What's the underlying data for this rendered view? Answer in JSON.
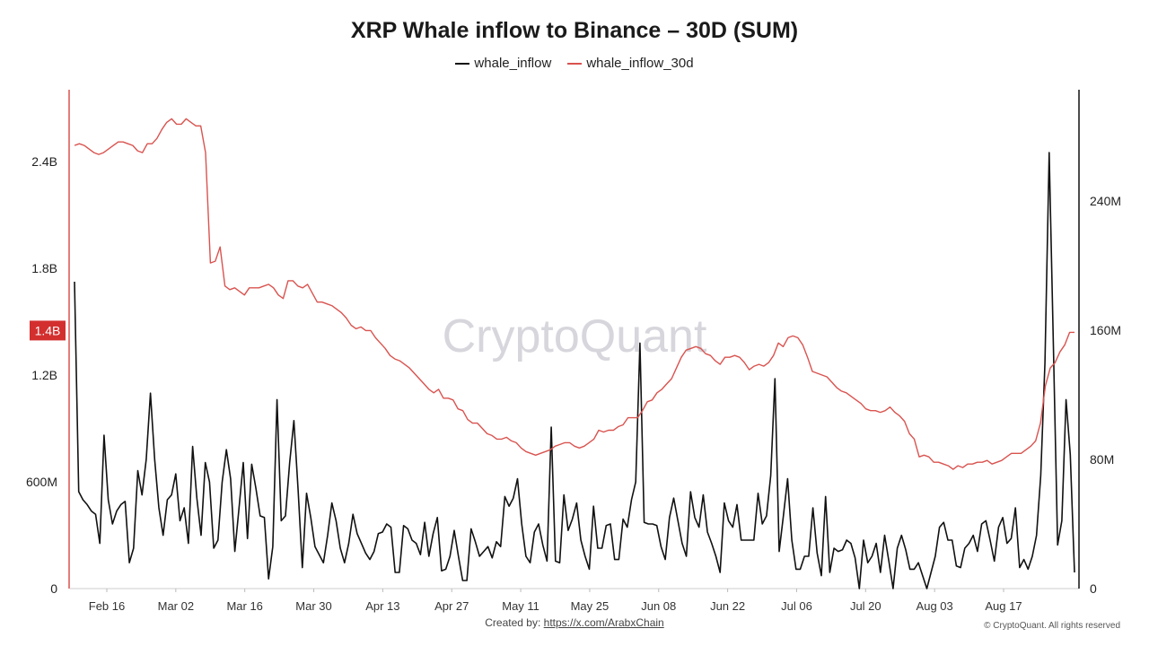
{
  "chart_data": {
    "type": "line",
    "title": "XRP Whale inflow to Binance – 30D (SUM)",
    "legend_position": "top-center",
    "grid": false,
    "x_tick_labels": [
      "Feb 16",
      "Mar 02",
      "Mar 16",
      "Mar 30",
      "Apr 13",
      "Apr 27",
      "May 11",
      "May 25",
      "Jun 08",
      "Jun 22",
      "Jul 06",
      "Jul 20",
      "Aug 03",
      "Aug 17"
    ],
    "left_axis": {
      "ticks": [
        "0",
        "600M",
        "1.2B",
        "1.8B",
        "2.4B"
      ],
      "tick_values": [
        0,
        600000000,
        1200000000,
        1800000000,
        2400000000
      ],
      "current_value_label": "1.4B",
      "current_value": 1450000000
    },
    "right_axis": {
      "ticks": [
        "0",
        "80M",
        "160M",
        "240M"
      ],
      "tick_values": [
        0,
        80000000,
        160000000,
        240000000
      ]
    },
    "series": [
      {
        "name": "whale_inflow",
        "axis": "right",
        "color": "#111111",
        "values_millions": [
          190,
          60,
          55,
          52,
          48,
          46,
          28,
          95,
          55,
          40,
          48,
          52,
          54,
          16,
          25,
          73,
          58,
          80,
          121,
          80,
          50,
          33,
          55,
          58,
          71,
          42,
          50,
          28,
          88,
          56,
          33,
          78,
          66,
          25,
          30,
          66,
          86,
          68,
          23,
          50,
          78,
          31,
          77,
          62,
          45,
          44,
          6,
          26,
          117,
          42,
          45,
          78,
          104,
          61,
          13,
          59,
          44,
          26,
          21,
          16,
          33,
          53,
          42,
          25,
          16,
          28,
          46,
          34,
          28,
          22,
          18,
          23,
          34,
          35,
          40,
          38,
          10,
          10,
          39,
          37,
          30,
          28,
          21,
          41,
          20,
          34,
          44,
          11,
          12,
          20,
          36,
          20,
          5,
          5,
          37,
          29,
          20,
          23,
          26,
          19,
          29,
          26,
          57,
          51,
          56,
          68,
          40,
          20,
          16,
          35,
          40,
          27,
          17,
          100,
          17,
          16,
          58,
          36,
          43,
          53,
          30,
          20,
          12,
          51,
          25,
          25,
          39,
          40,
          18,
          18,
          43,
          38,
          55,
          66,
          152,
          41,
          40,
          40,
          39,
          26,
          18,
          44,
          56,
          42,
          28,
          20,
          60,
          44,
          38,
          58,
          35,
          28,
          20,
          10,
          53,
          42,
          38,
          52,
          30,
          30,
          30,
          30,
          59,
          40,
          45,
          70,
          130,
          23,
          45,
          68,
          30,
          12,
          12,
          20,
          20,
          50,
          22,
          8,
          57,
          10,
          25,
          23,
          24,
          30,
          28,
          19,
          0,
          30,
          16,
          20,
          28,
          10,
          33,
          17,
          0,
          25,
          33,
          24,
          12,
          12,
          16,
          8,
          0,
          10,
          20,
          38,
          41,
          30,
          30,
          14,
          13,
          25,
          28,
          33,
          23,
          40,
          42,
          30,
          17,
          38,
          44,
          28,
          31,
          50,
          13,
          18,
          12,
          20,
          33,
          70,
          140,
          270,
          150,
          27,
          42,
          117,
          83,
          10
        ]
      },
      {
        "name": "whale_inflow_30d",
        "axis": "left",
        "color": "#d9534f",
        "values_millions": [
          2490,
          2500,
          2490,
          2470,
          2450,
          2440,
          2450,
          2470,
          2490,
          2510,
          2510,
          2500,
          2490,
          2460,
          2450,
          2500,
          2500,
          2530,
          2580,
          2620,
          2640,
          2610,
          2610,
          2640,
          2620,
          2600,
          2600,
          2450,
          1830,
          1840,
          1920,
          1700,
          1680,
          1690,
          1670,
          1650,
          1690,
          1690,
          1690,
          1700,
          1710,
          1690,
          1650,
          1630,
          1730,
          1730,
          1700,
          1690,
          1710,
          1660,
          1610,
          1610,
          1600,
          1590,
          1570,
          1550,
          1520,
          1480,
          1460,
          1470,
          1450,
          1450,
          1410,
          1380,
          1350,
          1310,
          1290,
          1280,
          1260,
          1240,
          1210,
          1180,
          1150,
          1120,
          1100,
          1120,
          1070,
          1070,
          1060,
          1010,
          1000,
          950,
          930,
          930,
          900,
          870,
          860,
          840,
          840,
          850,
          830,
          820,
          790,
          770,
          760,
          750,
          760,
          770,
          780,
          800,
          810,
          820,
          820,
          800,
          790,
          800,
          820,
          840,
          890,
          880,
          890,
          890,
          910,
          920,
          960,
          960,
          960,
          1000,
          1050,
          1060,
          1100,
          1120,
          1150,
          1180,
          1240,
          1300,
          1340,
          1350,
          1360,
          1350,
          1320,
          1310,
          1280,
          1260,
          1300,
          1300,
          1310,
          1300,
          1270,
          1230,
          1250,
          1260,
          1250,
          1270,
          1310,
          1380,
          1360,
          1410,
          1420,
          1410,
          1370,
          1300,
          1220,
          1210,
          1200,
          1190,
          1160,
          1130,
          1110,
          1100,
          1080,
          1060,
          1040,
          1010,
          1000,
          1000,
          990,
          1000,
          1020,
          990,
          970,
          940,
          870,
          840,
          740,
          750,
          740,
          710,
          710,
          700,
          690,
          670,
          690,
          680,
          700,
          700,
          710,
          710,
          720,
          700,
          710,
          720,
          740,
          760,
          760,
          760,
          780,
          800,
          830,
          930,
          1140,
          1240,
          1270,
          1330,
          1370,
          1440,
          1440
        ]
      }
    ],
    "watermark": "CryptoQuant"
  },
  "footer": {
    "created_by_label": "Created by:",
    "created_by_link": "https://x.com/ArabxChain",
    "copyright": "© CryptoQuant. All rights reserved"
  }
}
